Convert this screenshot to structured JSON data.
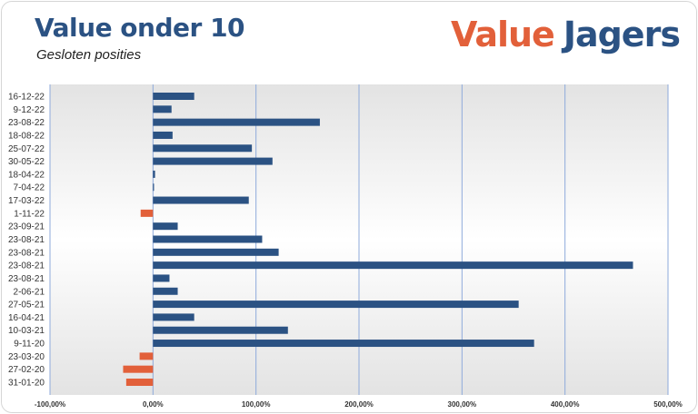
{
  "header": {
    "title": "Value onder 10",
    "subtitle": "Gesloten posities"
  },
  "logo": {
    "part1": "Value",
    "part2": "Jagers"
  },
  "colors": {
    "positive": "#2b5283",
    "negative": "#e2603a",
    "grid": "#8eaadb",
    "title": "#2b5283"
  },
  "chart_data": {
    "type": "bar",
    "orientation": "horizontal",
    "categories": [
      "16-12-22",
      "9-12-22",
      "23-08-22",
      "18-08-22",
      "25-07-22",
      "30-05-22",
      "18-04-22",
      "7-04-22",
      "17-03-22",
      "1-11-22",
      "23-09-21",
      "23-08-21",
      "23-08-21",
      "23-08-21",
      "23-08-21",
      "2-06-21",
      "27-05-21",
      "16-04-21",
      "10-03-21",
      "9-11-20",
      "23-03-20",
      "27-02-20",
      "31-01-20"
    ],
    "values": [
      40,
      18,
      162,
      19,
      96,
      116,
      2,
      1,
      93,
      -12,
      24,
      106,
      122,
      466,
      16,
      24,
      355,
      40,
      131,
      370,
      -13,
      -29,
      -26
    ],
    "xlim": [
      -100,
      500
    ],
    "xticks": [
      -100,
      0,
      100,
      200,
      300,
      400,
      500
    ],
    "xtick_labels": [
      "-100,00%",
      "0,00%",
      "100,00%",
      "200,00%",
      "300,00%",
      "400,00%",
      "500,00%"
    ],
    "grid": "vertical",
    "title": "Value onder 10",
    "xlabel": "",
    "ylabel": ""
  }
}
